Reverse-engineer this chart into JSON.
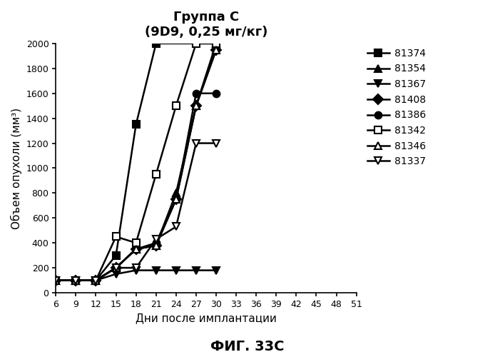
{
  "title_line1": "Группа С",
  "title_line2": "(9D9, 0,25 мг/кг)",
  "xlabel": "Дни после имплантации",
  "ylabel": "Объем опухоли (мм³)",
  "bottom_label": "ФИГ. 33С",
  "xlim": [
    6,
    51
  ],
  "ylim": [
    0,
    2000
  ],
  "xticks": [
    6,
    9,
    12,
    15,
    18,
    21,
    24,
    27,
    30,
    33,
    36,
    39,
    42,
    45,
    48,
    51
  ],
  "yticks": [
    0,
    200,
    400,
    600,
    800,
    1000,
    1200,
    1400,
    1600,
    1800,
    2000
  ],
  "series": [
    {
      "label": "81374",
      "marker": "s",
      "fillstyle": "full",
      "x": [
        6,
        9,
        12,
        15,
        18,
        21,
        30
      ],
      "y": [
        100,
        100,
        100,
        300,
        1350,
        2000,
        2000
      ]
    },
    {
      "label": "81354",
      "marker": "^",
      "fillstyle": "full",
      "x": [
        6,
        9,
        12,
        15,
        18,
        21,
        24,
        27,
        30
      ],
      "y": [
        100,
        100,
        100,
        200,
        350,
        380,
        800,
        1500,
        2000
      ]
    },
    {
      "label": "81367",
      "marker": "v",
      "fillstyle": "full",
      "x": [
        6,
        9,
        12,
        15,
        18,
        21,
        24,
        27,
        30
      ],
      "y": [
        100,
        100,
        100,
        150,
        180,
        180,
        180,
        180,
        180
      ]
    },
    {
      "label": "81408",
      "marker": "D",
      "fillstyle": "full",
      "x": [
        6,
        9,
        12,
        15,
        18,
        21,
        24,
        27,
        30
      ],
      "y": [
        100,
        100,
        100,
        200,
        350,
        380,
        750,
        1500,
        1950
      ]
    },
    {
      "label": "81386",
      "marker": "o",
      "fillstyle": "full",
      "x": [
        6,
        9,
        12,
        15,
        18,
        21,
        24,
        27,
        30
      ],
      "y": [
        100,
        100,
        100,
        200,
        350,
        400,
        750,
        1600,
        1600
      ]
    },
    {
      "label": "81342",
      "marker": "s",
      "fillstyle": "none",
      "x": [
        6,
        9,
        12,
        15,
        18,
        21,
        24,
        27,
        30
      ],
      "y": [
        100,
        100,
        100,
        450,
        400,
        950,
        1500,
        2000,
        2000
      ]
    },
    {
      "label": "81346",
      "marker": "^",
      "fillstyle": "none",
      "x": [
        6,
        9,
        12,
        15,
        18,
        21,
        24,
        27,
        30
      ],
      "y": [
        100,
        100,
        100,
        200,
        350,
        380,
        750,
        1500,
        1950
      ]
    },
    {
      "label": "81337",
      "marker": "v",
      "fillstyle": "none",
      "x": [
        6,
        9,
        12,
        15,
        18,
        21,
        24,
        27,
        30
      ],
      "y": [
        100,
        100,
        100,
        200,
        200,
        430,
        530,
        1200,
        1200
      ]
    }
  ],
  "color": "#000000",
  "linewidth": 1.8,
  "markersize": 7,
  "background_color": "#ffffff"
}
